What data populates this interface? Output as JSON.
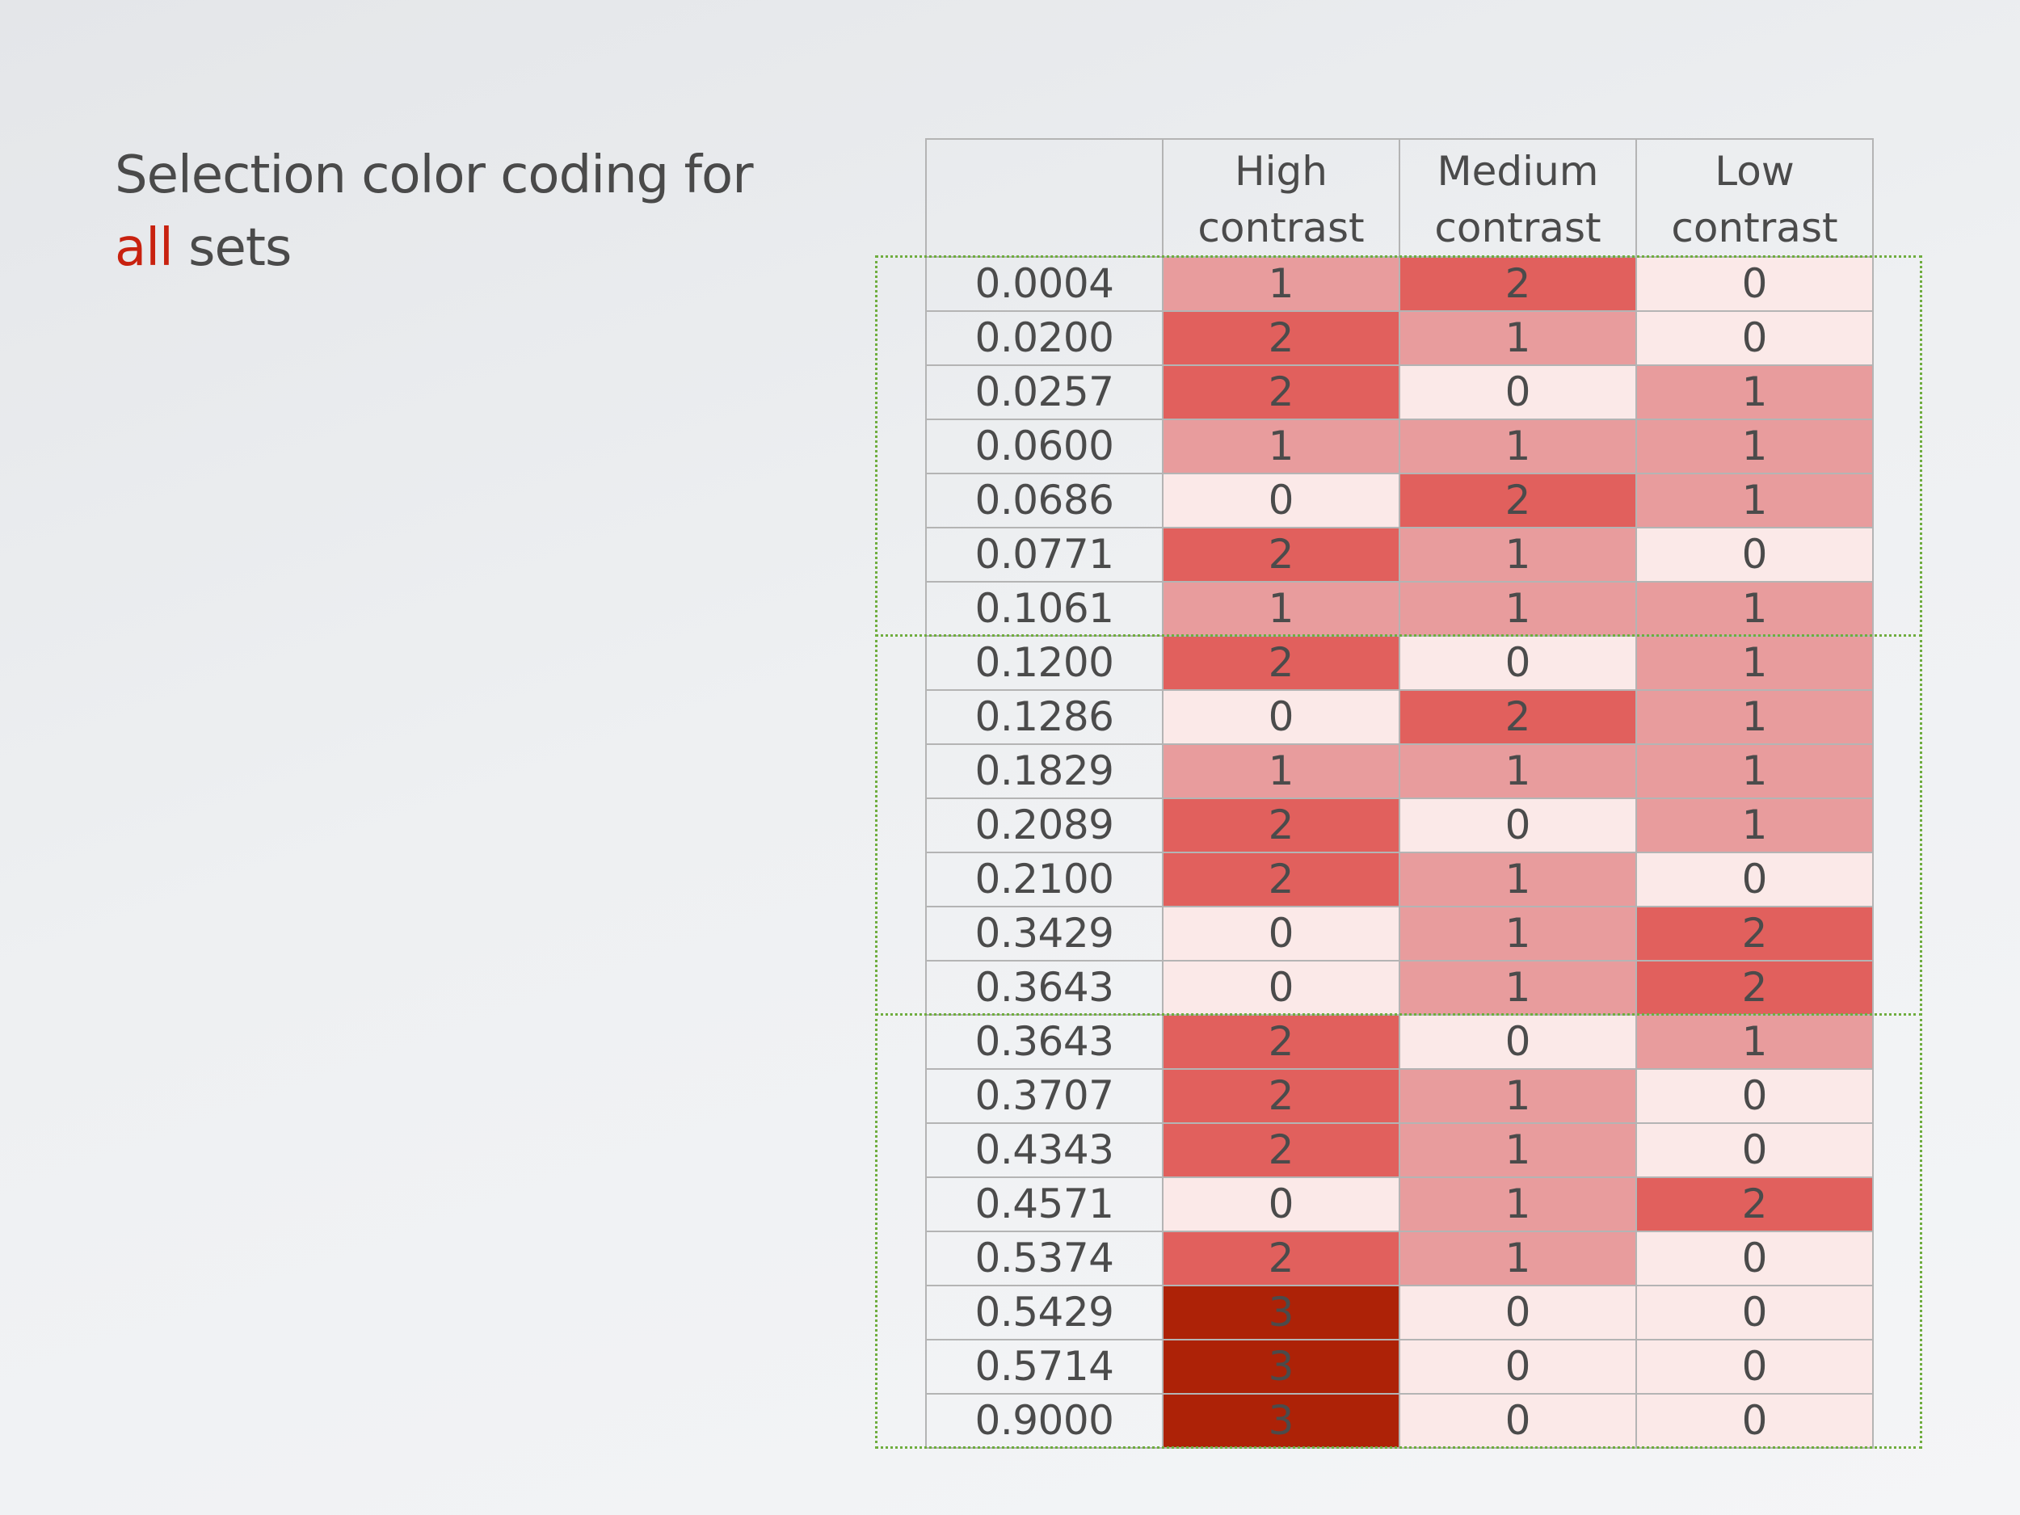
{
  "slide": {
    "title_prefix": "Selection color coding for",
    "title_highlight": "all",
    "title_suffix": " sets",
    "highlight_color": "#c8210f"
  },
  "chart_data": {
    "type": "heatmap",
    "title": "Selection color coding for all sets",
    "row_header": "",
    "columns": [
      {
        "line1": "High",
        "line2": "contrast"
      },
      {
        "line1": "Medium",
        "line2": "contrast"
      },
      {
        "line1": "Low",
        "line2": "contrast"
      }
    ],
    "rows": [
      {
        "threshold": "0.0004",
        "values": [
          1,
          2,
          0
        ]
      },
      {
        "threshold": "0.0200",
        "values": [
          2,
          1,
          0
        ]
      },
      {
        "threshold": "0.0257",
        "values": [
          2,
          0,
          1
        ]
      },
      {
        "threshold": "0.0600",
        "values": [
          1,
          1,
          1
        ]
      },
      {
        "threshold": "0.0686",
        "values": [
          0,
          2,
          1
        ]
      },
      {
        "threshold": "0.0771",
        "values": [
          2,
          1,
          0
        ]
      },
      {
        "threshold": "0.1061",
        "values": [
          1,
          1,
          1
        ]
      },
      {
        "threshold": "0.1200",
        "values": [
          2,
          0,
          1
        ]
      },
      {
        "threshold": "0.1286",
        "values": [
          0,
          2,
          1
        ]
      },
      {
        "threshold": "0.1829",
        "values": [
          1,
          1,
          1
        ]
      },
      {
        "threshold": "0.2089",
        "values": [
          2,
          0,
          1
        ]
      },
      {
        "threshold": "0.2100",
        "values": [
          2,
          1,
          0
        ]
      },
      {
        "threshold": "0.3429",
        "values": [
          0,
          1,
          2
        ]
      },
      {
        "threshold": "0.3643",
        "values": [
          0,
          1,
          2
        ]
      },
      {
        "threshold": "0.3643",
        "values": [
          2,
          0,
          1
        ]
      },
      {
        "threshold": "0.3707",
        "values": [
          2,
          1,
          0
        ]
      },
      {
        "threshold": "0.4343",
        "values": [
          2,
          1,
          0
        ]
      },
      {
        "threshold": "0.4571",
        "values": [
          0,
          1,
          2
        ]
      },
      {
        "threshold": "0.5374",
        "values": [
          2,
          1,
          0
        ]
      },
      {
        "threshold": "0.5429",
        "values": [
          3,
          0,
          0
        ]
      },
      {
        "threshold": "0.5714",
        "values": [
          3,
          0,
          0
        ]
      },
      {
        "threshold": "0.9000",
        "values": [
          3,
          0,
          0
        ]
      }
    ],
    "color_scale": {
      "0": "#fbe9e8",
      "1": "#e89c9d",
      "2": "#e1605d",
      "3": "#ad2207"
    },
    "groups": [
      {
        "first_row": 0,
        "last_row": 6
      },
      {
        "first_row": 7,
        "last_row": 13
      },
      {
        "first_row": 14,
        "last_row": 21
      }
    ],
    "group_border_color": "#6fad3e"
  }
}
